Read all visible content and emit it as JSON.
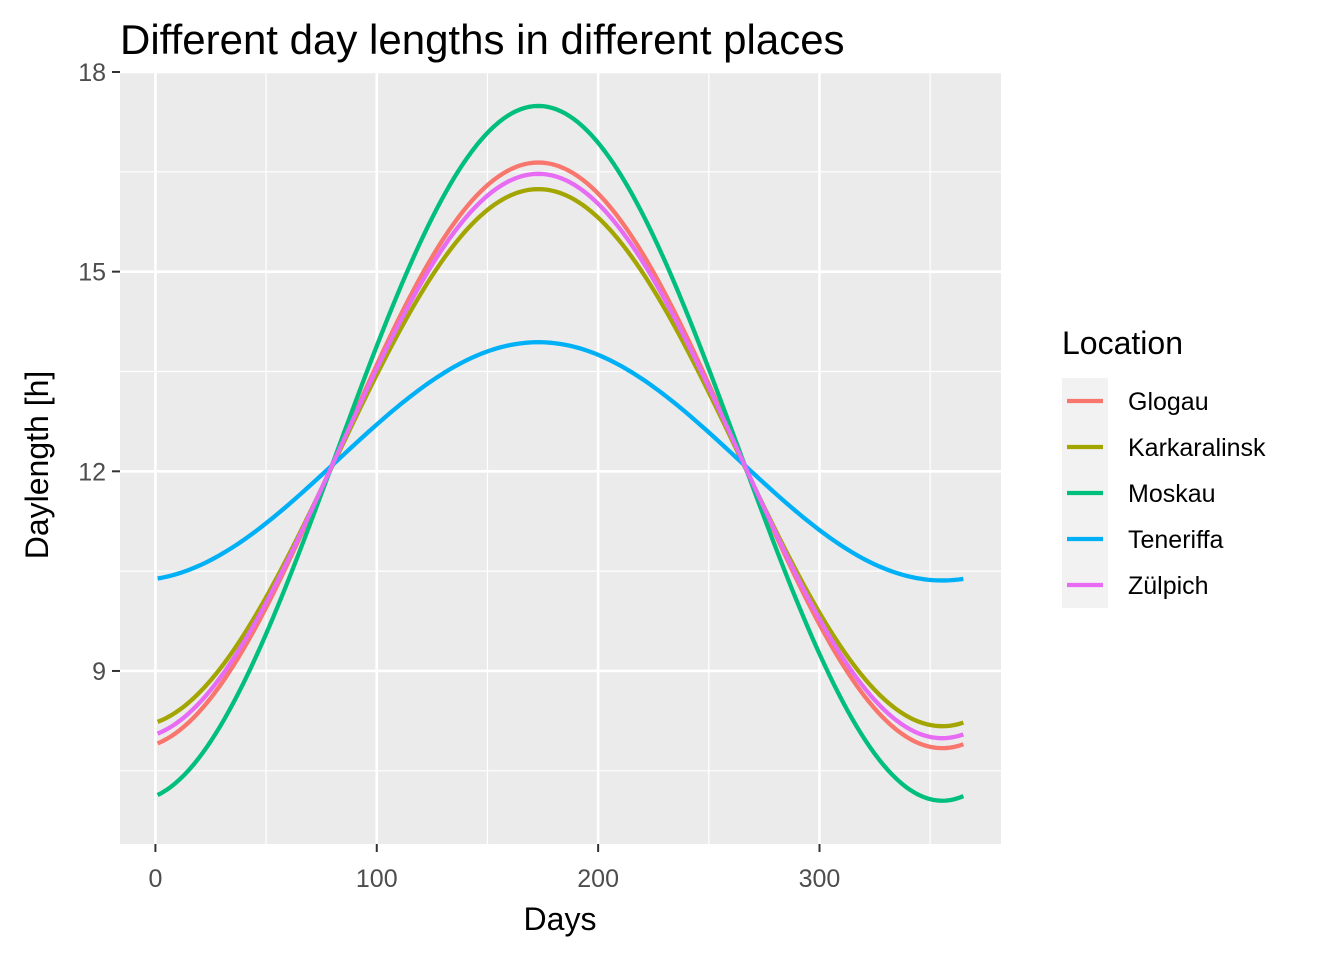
{
  "chart_data": {
    "type": "line",
    "title": "Different day lengths in different places",
    "xlabel": "Days",
    "ylabel": "Daylength [h]",
    "xlim": [
      -16,
      382
    ],
    "ylim": [
      6.4,
      18
    ],
    "x_ticks": [
      0,
      100,
      200,
      300
    ],
    "y_ticks": [
      9,
      12,
      15,
      18
    ],
    "x_minor_ticks": [
      50,
      150,
      250,
      350
    ],
    "y_minor_ticks": [
      7.5,
      10.5,
      13.5,
      16.5
    ],
    "grid": true,
    "legend": {
      "title": "Location",
      "placement": "right"
    },
    "x": [
      1,
      365
    ],
    "series": [
      {
        "name": "Glogau",
        "color": "#F8766D",
        "min_day": 356,
        "min_hours": 7.84,
        "max_day": 173,
        "max_hours": 16.64
      },
      {
        "name": "Karkaralinsk",
        "color": "#A3A500",
        "min_day": 356,
        "min_hours": 8.17,
        "max_day": 173,
        "max_hours": 16.24
      },
      {
        "name": "Moskau",
        "color": "#00BF7D",
        "min_day": 356,
        "min_hours": 7.05,
        "max_day": 173,
        "max_hours": 17.49
      },
      {
        "name": "Teneriffa",
        "color": "#00B0F6",
        "min_day": 356,
        "min_hours": 10.36,
        "max_day": 173,
        "max_hours": 13.94
      },
      {
        "name": "Zülpich",
        "color": "#E76BF3",
        "min_day": 356,
        "min_hours": 7.99,
        "max_day": 173,
        "max_hours": 16.47
      }
    ]
  }
}
